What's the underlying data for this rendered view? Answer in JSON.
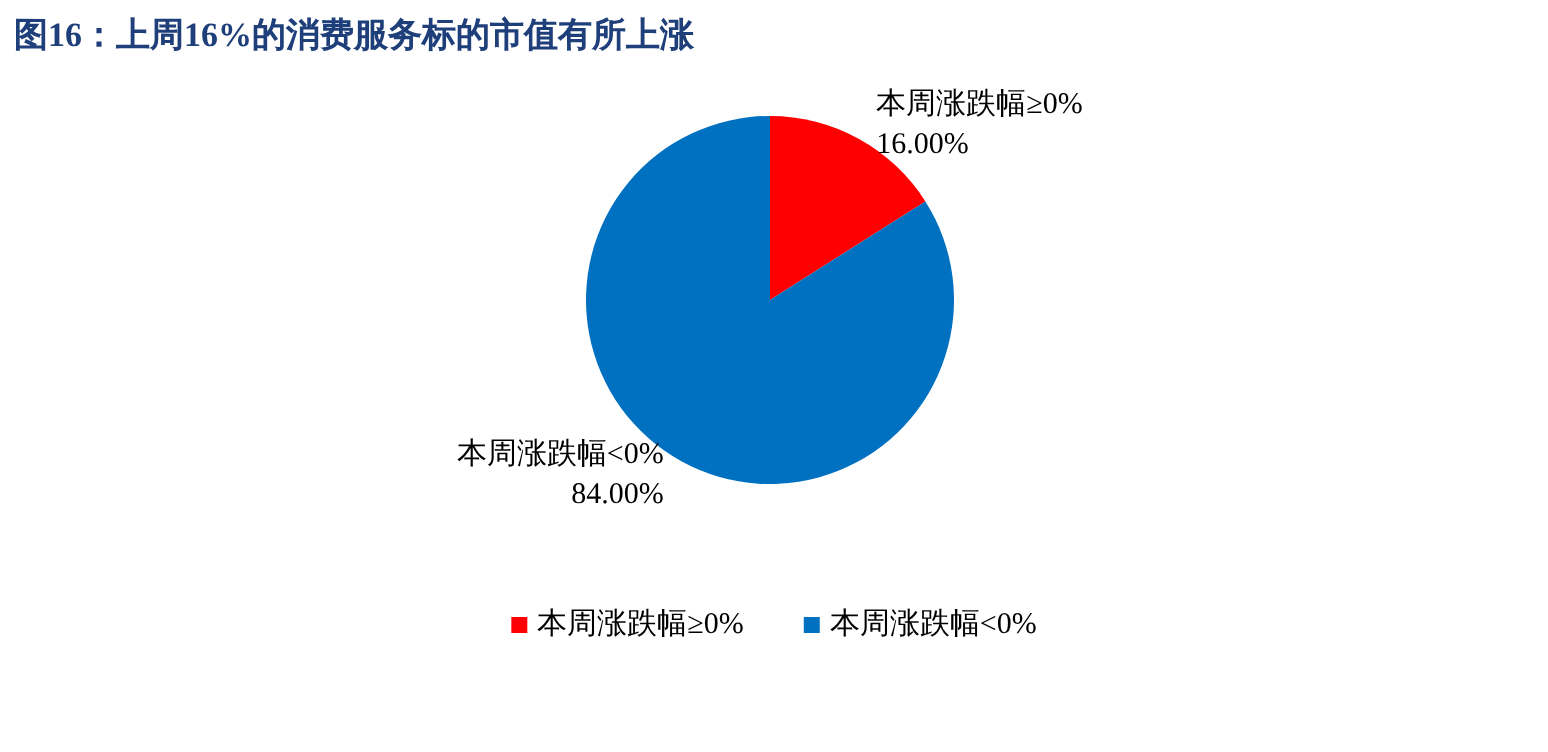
{
  "chart_data": {
    "type": "pie",
    "title": "图16：上周16%的消费服务标的市值有所上涨",
    "categories": [
      "本周涨跌幅≥0%",
      "本周涨跌幅<0%"
    ],
    "values": [
      16,
      84
    ],
    "colors": [
      "#ff0000",
      "#0070c0"
    ],
    "value_labels": [
      "16.00%",
      "84.00%"
    ],
    "legend": "bottom"
  }
}
